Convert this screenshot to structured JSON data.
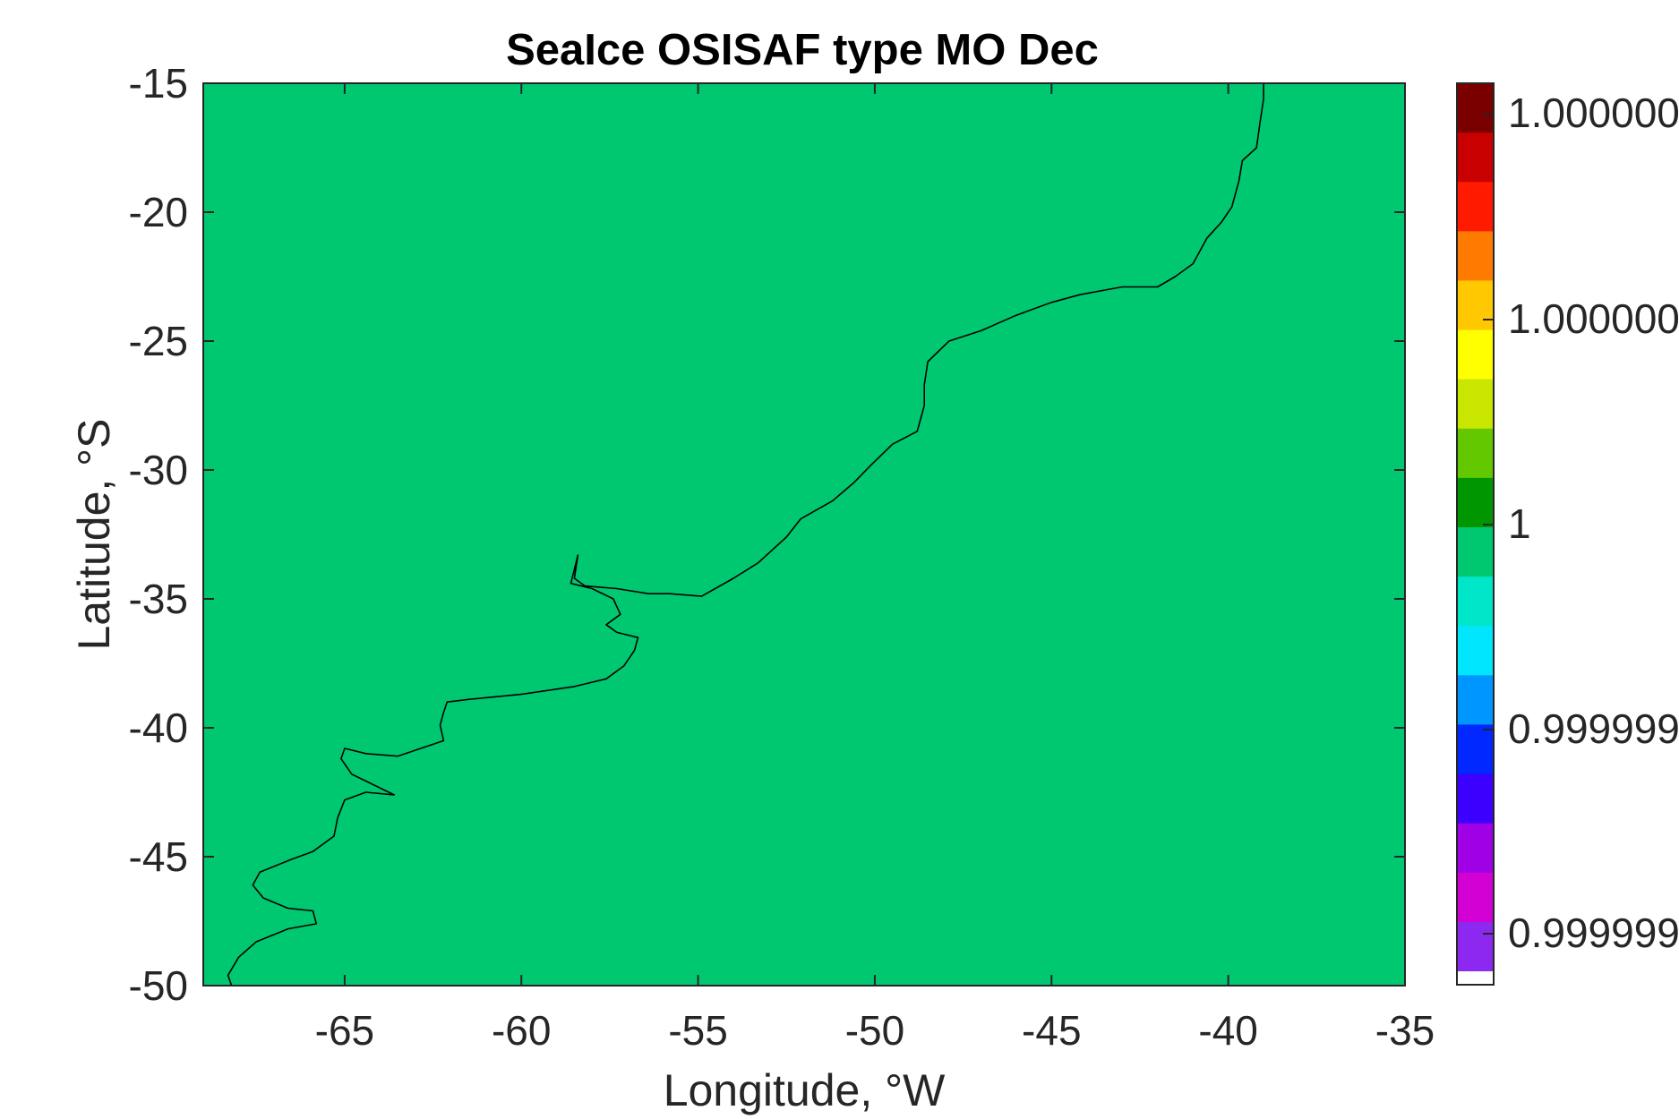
{
  "chart_data": {
    "type": "heatmap",
    "title": "SeaIce OSISAF type MO Dec",
    "xlabel": "Longitude, °W",
    "ylabel": "Latitude, °S",
    "xlim": [
      -69,
      -35
    ],
    "ylim": [
      -50,
      -15
    ],
    "x_ticks": [
      "-65",
      "-60",
      "-55",
      "-50",
      "-45",
      "-40",
      "-35"
    ],
    "y_ticks": [
      "-15",
      "-20",
      "-25",
      "-30",
      "-35",
      "-40",
      "-45",
      "-50"
    ],
    "field_value": 1,
    "field_color": "#00c870",
    "coastline_color": "#000000",
    "colorbar": {
      "labels": [
        "1.000000",
        "1.000000",
        "1",
        "0.999999",
        "0.999999"
      ],
      "colors": [
        "#7a0000",
        "#c80000",
        "#ff1a00",
        "#ff7a00",
        "#ffc800",
        "#ffff00",
        "#c8e600",
        "#64c800",
        "#009600",
        "#00c870",
        "#00e6c8",
        "#00e6ff",
        "#0096ff",
        "#0028ff",
        "#3c00ff",
        "#a000e6",
        "#d200d2",
        "#8c28f0"
      ]
    },
    "coastline": [
      [
        -39.0,
        -15.0
      ],
      [
        -39.0,
        -15.6
      ],
      [
        -39.1,
        -16.5
      ],
      [
        -39.2,
        -17.5
      ],
      [
        -39.6,
        -18.0
      ],
      [
        -39.7,
        -18.8
      ],
      [
        -39.9,
        -19.8
      ],
      [
        -40.2,
        -20.4
      ],
      [
        -40.6,
        -21.0
      ],
      [
        -41.0,
        -22.0
      ],
      [
        -41.5,
        -22.5
      ],
      [
        -42.0,
        -22.9
      ],
      [
        -43.0,
        -22.9
      ],
      [
        -43.4,
        -23.0
      ],
      [
        -44.2,
        -23.2
      ],
      [
        -45.0,
        -23.5
      ],
      [
        -46.0,
        -24.0
      ],
      [
        -47.0,
        -24.6
      ],
      [
        -47.9,
        -25.0
      ],
      [
        -48.5,
        -25.8
      ],
      [
        -48.6,
        -26.7
      ],
      [
        -48.6,
        -27.5
      ],
      [
        -48.8,
        -28.5
      ],
      [
        -49.5,
        -29.0
      ],
      [
        -50.1,
        -29.8
      ],
      [
        -50.6,
        -30.5
      ],
      [
        -51.2,
        -31.2
      ],
      [
        -52.1,
        -31.9
      ],
      [
        -52.5,
        -32.6
      ],
      [
        -53.3,
        -33.6
      ],
      [
        -54.0,
        -34.2
      ],
      [
        -54.9,
        -34.9
      ],
      [
        -55.8,
        -34.8
      ],
      [
        -56.4,
        -34.8
      ],
      [
        -57.3,
        -34.6
      ],
      [
        -58.2,
        -34.5
      ],
      [
        -58.5,
        -34.2
      ],
      [
        -58.4,
        -33.3
      ],
      [
        -58.6,
        -34.4
      ],
      [
        -58.0,
        -34.6
      ],
      [
        -57.4,
        -35.0
      ],
      [
        -57.2,
        -35.6
      ],
      [
        -57.6,
        -36.0
      ],
      [
        -57.3,
        -36.3
      ],
      [
        -56.7,
        -36.5
      ],
      [
        -56.8,
        -37.0
      ],
      [
        -57.1,
        -37.6
      ],
      [
        -57.6,
        -38.1
      ],
      [
        -58.5,
        -38.4
      ],
      [
        -60.0,
        -38.7
      ],
      [
        -61.5,
        -38.9
      ],
      [
        -62.1,
        -39.0
      ],
      [
        -62.2,
        -39.4
      ],
      [
        -62.3,
        -39.9
      ],
      [
        -62.2,
        -40.5
      ],
      [
        -63.5,
        -41.1
      ],
      [
        -64.4,
        -41.0
      ],
      [
        -65.0,
        -40.8
      ],
      [
        -65.1,
        -41.2
      ],
      [
        -64.8,
        -41.8
      ],
      [
        -64.2,
        -42.2
      ],
      [
        -63.6,
        -42.6
      ],
      [
        -64.4,
        -42.5
      ],
      [
        -65.0,
        -42.8
      ],
      [
        -65.2,
        -43.5
      ],
      [
        -65.3,
        -44.2
      ],
      [
        -65.9,
        -44.8
      ],
      [
        -66.5,
        -45.1
      ],
      [
        -67.4,
        -45.6
      ],
      [
        -67.6,
        -46.1
      ],
      [
        -67.3,
        -46.6
      ],
      [
        -66.6,
        -47.0
      ],
      [
        -65.9,
        -47.1
      ],
      [
        -65.8,
        -47.6
      ],
      [
        -66.6,
        -47.8
      ],
      [
        -67.5,
        -48.3
      ],
      [
        -68.0,
        -48.9
      ],
      [
        -68.3,
        -49.6
      ],
      [
        -68.2,
        -50.0
      ]
    ]
  }
}
